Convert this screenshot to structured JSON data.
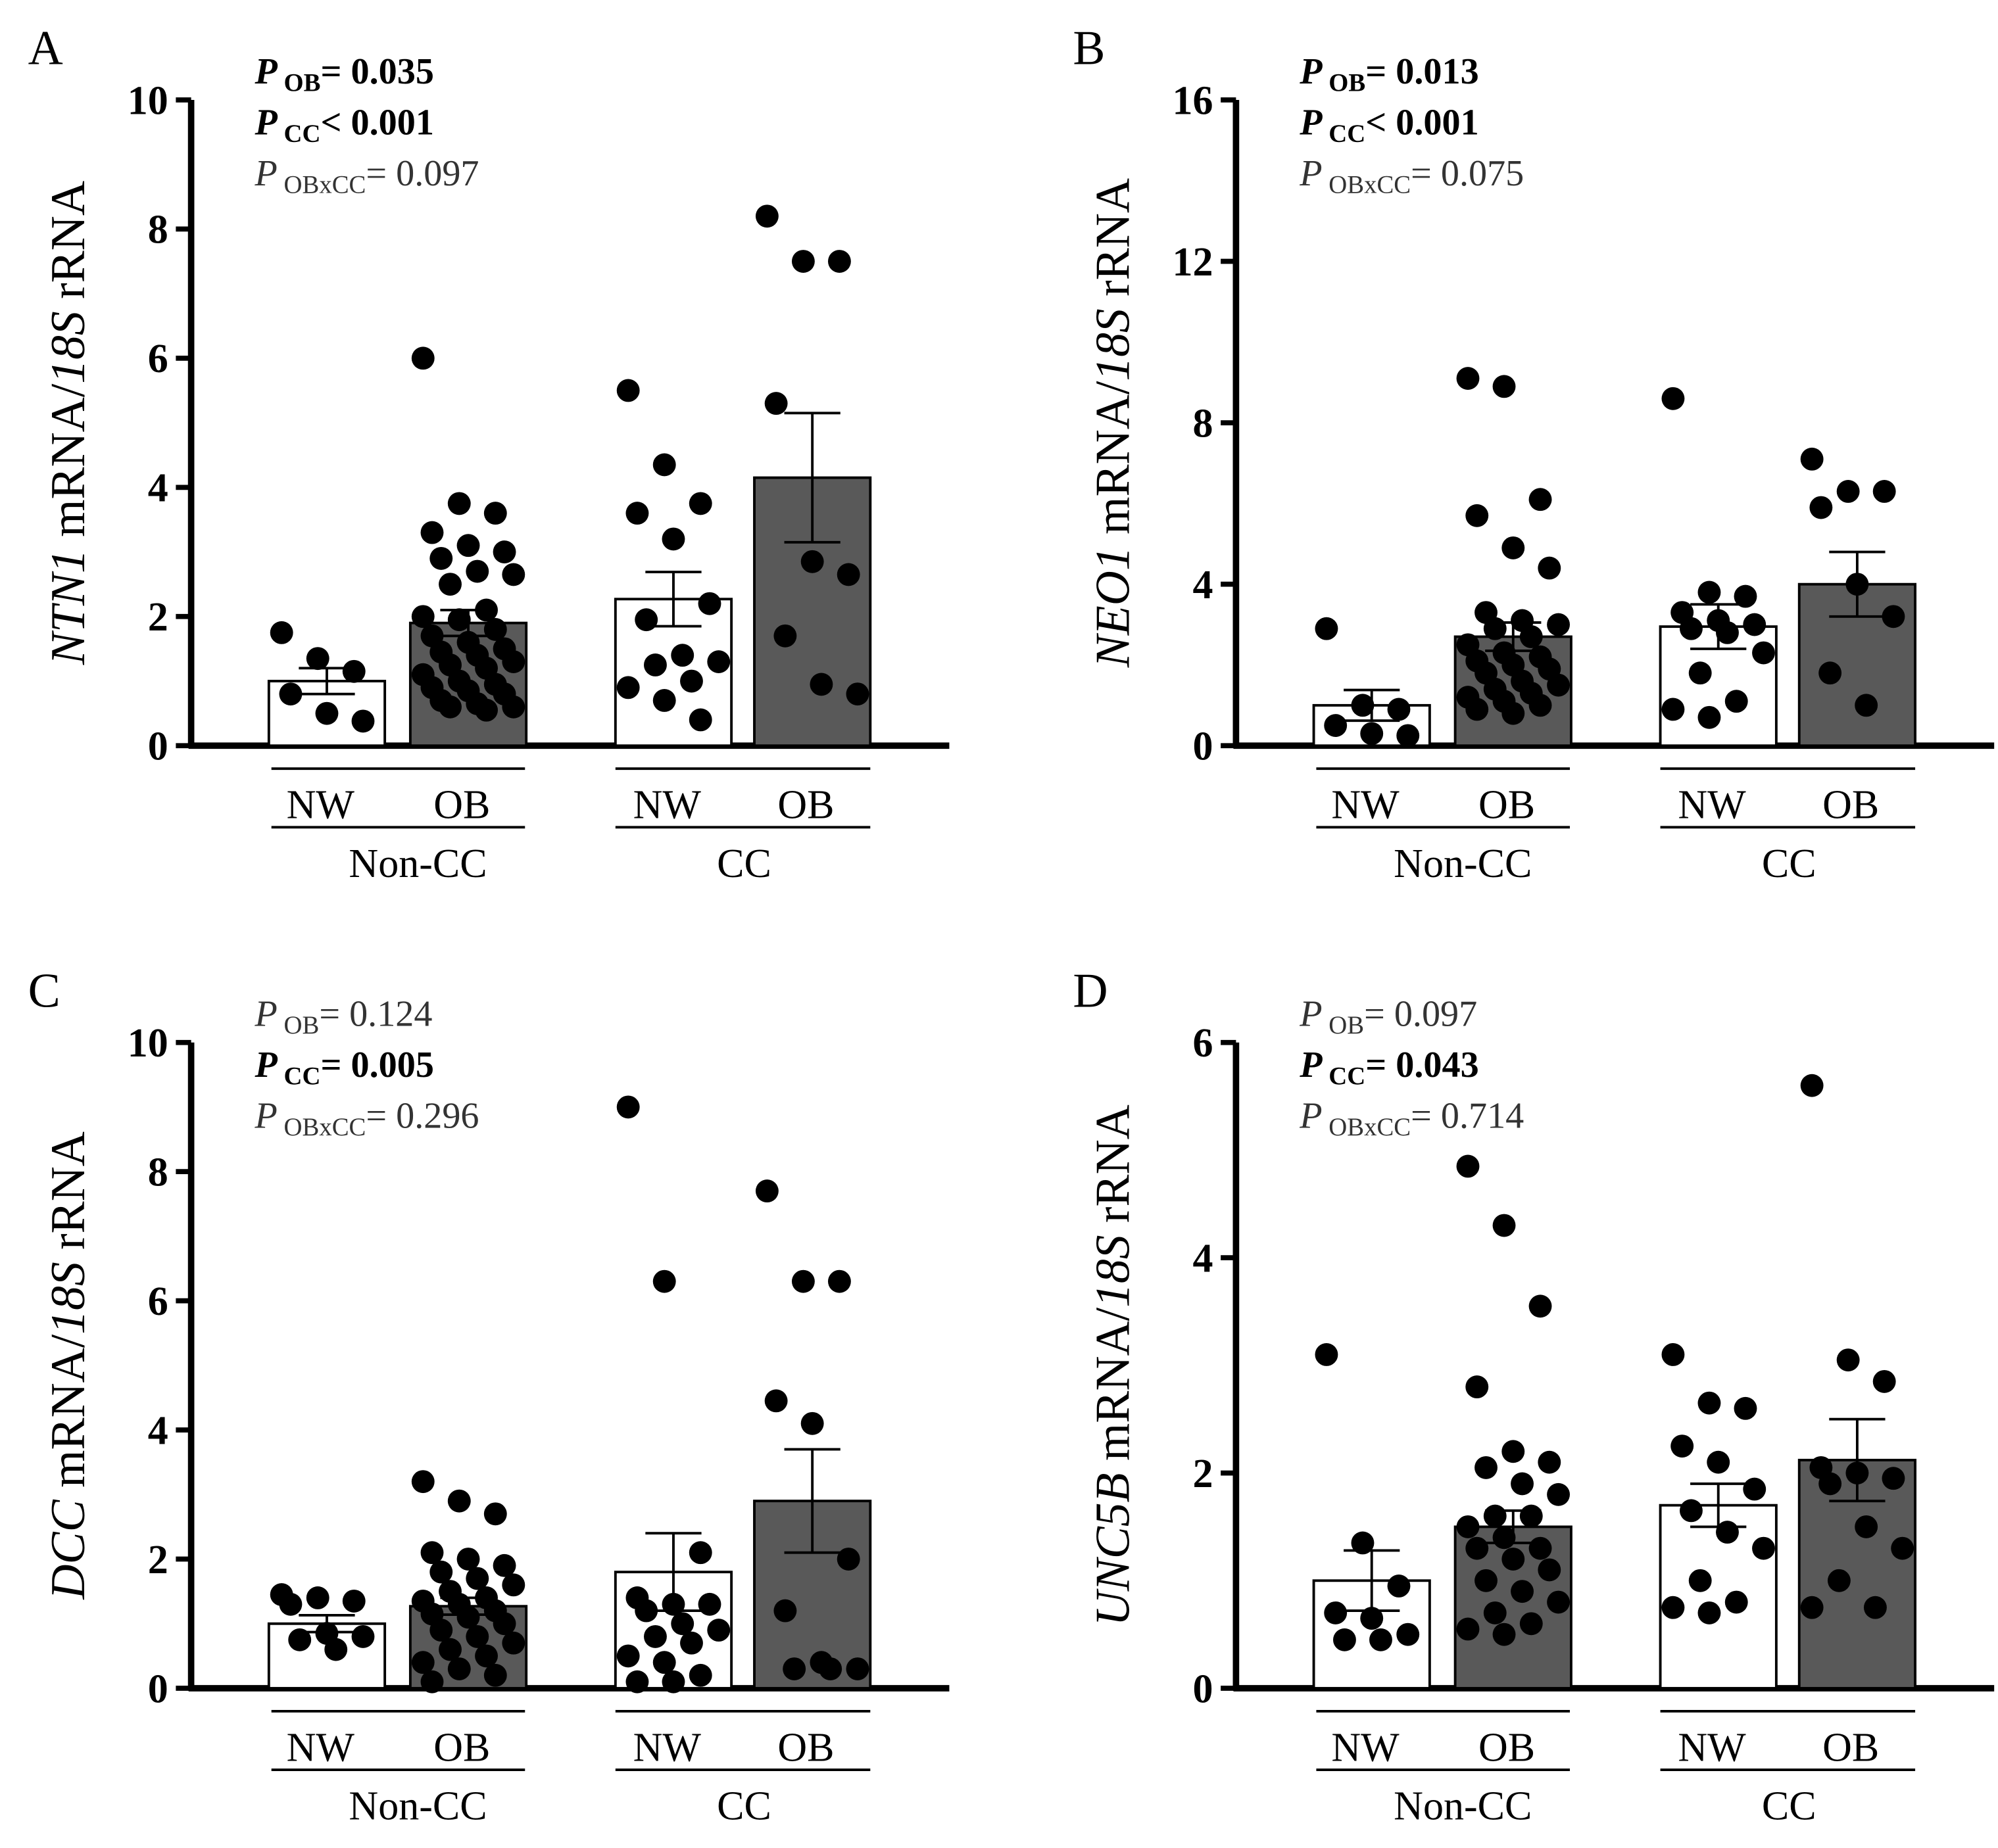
{
  "chart_data": [
    {
      "panel": "A",
      "type": "bar",
      "gene": "NTN1",
      "ylabel_rest": " mRNA/",
      "ylabel_ital2": "18S",
      "ylabel_end": " rRNA",
      "ylim": [
        0,
        10
      ],
      "yticks": [
        "0",
        "2",
        "4",
        "6",
        "8",
        "10"
      ],
      "pvalues": [
        {
          "p": "P",
          "sub": "OB",
          "text": "= 0.035",
          "bold": true
        },
        {
          "p": "P",
          "sub": "CC",
          "text": "< 0.001",
          "bold": true
        },
        {
          "p": "P",
          "sub": "OBxCC",
          "text": "= 0.097",
          "bold": false
        }
      ],
      "groups": [
        "Non-CC",
        "CC"
      ],
      "categories": [
        "NW",
        "OB",
        "NW",
        "OB"
      ],
      "series": [
        {
          "name": "Non-CC NW",
          "mean": 1.0,
          "sem": 0.2,
          "points": [
            1.75,
            1.35,
            1.15,
            0.8,
            0.5,
            0.38
          ]
        },
        {
          "name": "Non-CC OB",
          "mean": 1.9,
          "sem": 0.2,
          "points": [
            6.0,
            3.75,
            3.6,
            3.3,
            3.1,
            3.0,
            2.9,
            2.7,
            2.65,
            2.5,
            2.1,
            2.0,
            1.95,
            1.8,
            1.7,
            1.6,
            1.5,
            1.45,
            1.4,
            1.3,
            1.25,
            1.2,
            1.1,
            1.0,
            0.95,
            0.9,
            0.85,
            0.8,
            0.7,
            0.65,
            0.6,
            0.6,
            0.55
          ]
        },
        {
          "name": "CC NW",
          "mean": 2.27,
          "sem": 0.42,
          "points": [
            5.5,
            4.35,
            3.75,
            3.6,
            3.2,
            2.2,
            1.95,
            1.4,
            1.3,
            1.25,
            1.0,
            0.9,
            0.7,
            0.4
          ]
        },
        {
          "name": "CC OB",
          "mean": 4.15,
          "sem": 1.0,
          "points": [
            8.2,
            7.5,
            7.5,
            5.3,
            2.85,
            2.65,
            1.7,
            0.95,
            0.8
          ]
        }
      ]
    },
    {
      "panel": "B",
      "type": "bar",
      "gene": "NEO1",
      "ylabel_rest": " mRNA/",
      "ylabel_ital2": "18S",
      "ylabel_end": " rRNA",
      "ylim": [
        0,
        16
      ],
      "yticks": [
        "0",
        "4",
        "8",
        "12",
        "16"
      ],
      "pvalues": [
        {
          "p": "P",
          "sub": "OB",
          "text": "= 0.013",
          "bold": true
        },
        {
          "p": "P",
          "sub": "CC",
          "text": "< 0.001",
          "bold": true
        },
        {
          "p": "P",
          "sub": "OBxCC",
          "text": "= 0.075",
          "bold": false
        }
      ],
      "groups": [
        "Non-CC",
        "CC"
      ],
      "categories": [
        "NW",
        "OB",
        "NW",
        "OB"
      ],
      "series": [
        {
          "name": "Non-CC NW",
          "mean": 1.0,
          "sem": 0.38,
          "points": [
            2.9,
            1.0,
            0.9,
            0.5,
            0.3,
            0.25
          ]
        },
        {
          "name": "Non-CC OB",
          "mean": 2.7,
          "sem": 0.35,
          "points": [
            9.1,
            8.9,
            6.1,
            5.7,
            4.9,
            4.4,
            3.3,
            3.1,
            3.0,
            2.9,
            2.7,
            2.5,
            2.3,
            2.2,
            2.1,
            2.0,
            1.9,
            1.8,
            1.6,
            1.5,
            1.4,
            1.3,
            1.2,
            1.1,
            1.0,
            0.9,
            0.8
          ]
        },
        {
          "name": "CC NW",
          "mean": 2.95,
          "sem": 0.55,
          "points": [
            8.6,
            3.8,
            3.7,
            3.3,
            3.1,
            3.0,
            2.9,
            2.8,
            2.3,
            1.8,
            1.1,
            0.9,
            0.7
          ]
        },
        {
          "name": "CC OB",
          "mean": 4.0,
          "sem": 0.8,
          "points": [
            7.1,
            6.3,
            6.3,
            5.9,
            4.0,
            3.2,
            1.8,
            1.0
          ]
        }
      ]
    },
    {
      "panel": "C",
      "type": "bar",
      "gene": "DCC",
      "ylabel_rest": " mRNA/",
      "ylabel_ital2": "18S",
      "ylabel_end": " rRNA",
      "ylim": [
        0,
        10
      ],
      "yticks": [
        "0",
        "2",
        "4",
        "6",
        "8",
        "10"
      ],
      "pvalues": [
        {
          "p": "P",
          "sub": "OB",
          "text": "= 0.124",
          "bold": false
        },
        {
          "p": "P",
          "sub": "CC",
          "text": "= 0.005",
          "bold": true
        },
        {
          "p": "P",
          "sub": "OBxCC",
          "text": "= 0.296",
          "bold": false
        }
      ],
      "groups": [
        "Non-CC",
        "CC"
      ],
      "categories": [
        "NW",
        "OB",
        "NW",
        "OB"
      ],
      "series": [
        {
          "name": "Non-CC NW",
          "mean": 1.0,
          "sem": 0.13,
          "points": [
            1.45,
            1.4,
            1.35,
            1.3,
            0.85,
            0.8,
            0.75,
            0.6
          ]
        },
        {
          "name": "Non-CC OB",
          "mean": 1.27,
          "sem": 0.13,
          "points": [
            3.2,
            2.9,
            2.7,
            2.1,
            2.0,
            1.9,
            1.8,
            1.7,
            1.6,
            1.5,
            1.4,
            1.35,
            1.3,
            1.2,
            1.15,
            1.1,
            1.0,
            0.9,
            0.8,
            0.7,
            0.6,
            0.5,
            0.4,
            0.3,
            0.2,
            0.1
          ]
        },
        {
          "name": "CC NW",
          "mean": 1.8,
          "sem": 0.6,
          "points": [
            9.0,
            6.3,
            2.1,
            1.4,
            1.3,
            1.3,
            1.2,
            1.0,
            0.9,
            0.8,
            0.7,
            0.5,
            0.4,
            0.2,
            0.1,
            0.1
          ]
        },
        {
          "name": "CC OB",
          "mean": 2.9,
          "sem": 0.8,
          "points": [
            7.7,
            6.3,
            6.3,
            4.45,
            4.1,
            2.0,
            1.2,
            0.4,
            0.3,
            0.3,
            0.3
          ]
        }
      ]
    },
    {
      "panel": "D",
      "type": "bar",
      "gene": "UNC5B",
      "ylabel_rest": " mRNA/",
      "ylabel_ital2": "18S",
      "ylabel_end": " rRNA",
      "ylim": [
        0,
        6
      ],
      "yticks": [
        "0",
        "2",
        "4",
        "6"
      ],
      "pvalues": [
        {
          "p": "P",
          "sub": "OB",
          "text": "= 0.097",
          "bold": false
        },
        {
          "p": "P",
          "sub": "CC",
          "text": "= 0.043",
          "bold": true
        },
        {
          "p": "P",
          "sub": "OBxCC",
          "text": "= 0.714",
          "bold": false
        }
      ],
      "groups": [
        "Non-CC",
        "CC"
      ],
      "categories": [
        "NW",
        "OB",
        "NW",
        "OB"
      ],
      "series": [
        {
          "name": "Non-CC NW",
          "mean": 1.0,
          "sem": 0.28,
          "points": [
            3.1,
            1.35,
            0.95,
            0.7,
            0.65,
            0.5,
            0.45,
            0.45
          ]
        },
        {
          "name": "Non-CC OB",
          "mean": 1.5,
          "sem": 0.15,
          "points": [
            4.85,
            4.3,
            3.55,
            2.8,
            2.2,
            2.1,
            2.05,
            1.9,
            1.8,
            1.6,
            1.6,
            1.5,
            1.4,
            1.3,
            1.3,
            1.2,
            1.1,
            1.0,
            0.9,
            0.8,
            0.7,
            0.6,
            0.55,
            0.5
          ]
        },
        {
          "name": "CC NW",
          "mean": 1.7,
          "sem": 0.2,
          "points": [
            3.1,
            2.65,
            2.6,
            2.25,
            2.1,
            1.85,
            1.65,
            1.45,
            1.3,
            1.0,
            0.8,
            0.75,
            0.7
          ]
        },
        {
          "name": "CC OB",
          "mean": 2.12,
          "sem": 0.38,
          "points": [
            5.6,
            3.05,
            2.85,
            2.05,
            2.0,
            1.95,
            1.9,
            1.5,
            1.3,
            1.0,
            0.75,
            0.75
          ]
        }
      ]
    }
  ],
  "colors": {
    "nw_fill": "#ffffff",
    "ob_fill": "#595959",
    "dot": "#000000",
    "axis": "#000000"
  }
}
